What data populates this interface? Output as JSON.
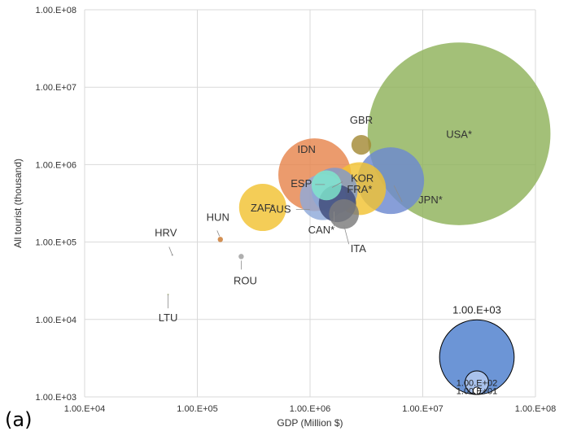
{
  "chart_data": {
    "type": "scatter",
    "subtype": "bubble",
    "xlabel": "GDP (Million $)",
    "ylabel": "All tourist  (thousand)",
    "x_scale": "log",
    "y_scale": "log",
    "xlim": [
      10000,
      100000000
    ],
    "ylim": [
      1000,
      100000000
    ],
    "x_ticks": [
      "1.00.E+04",
      "1.00.E+05",
      "1.00.E+06",
      "1.00.E+07",
      "1.00.E+08"
    ],
    "y_ticks": [
      "1.00.E+03",
      "1.00.E+04",
      "1.00.E+05",
      "1.00.E+06",
      "1.00.E+07",
      "1.00.E+08"
    ],
    "grid": true,
    "points": [
      {
        "label": "USA*",
        "x": 21000000,
        "y": 2500000,
        "size": 6000,
        "color": "#8fb25a"
      },
      {
        "label": "JPN*",
        "x": 5200000,
        "y": 620000,
        "size": 800,
        "color": "#6c89d0"
      },
      {
        "label": "GBR",
        "x": 2850000,
        "y": 1800000,
        "size": 70,
        "color": "#a48a36"
      },
      {
        "label": "FRA*",
        "x": 2750000,
        "y": 490000,
        "size": 500,
        "color": "#f1c232"
      },
      {
        "label": "IDN",
        "x": 1100000,
        "y": 740000,
        "size": 950,
        "color": "#e6854d"
      },
      {
        "label": "KOR",
        "x": 1650000,
        "y": 460000,
        "size": 380,
        "color": "#7f99cc"
      },
      {
        "label": "ESP",
        "x": 1400000,
        "y": 540000,
        "size": 160,
        "color": "#7fe8cc"
      },
      {
        "label": "AUS",
        "x": 1300000,
        "y": 380000,
        "size": 380,
        "color": "#8fa9d9"
      },
      {
        "label": "CAN*",
        "x": 1750000,
        "y": 315000,
        "size": 250,
        "color": "#3e4a79"
      },
      {
        "label": "ITA",
        "x": 2000000,
        "y": 230000,
        "size": 160,
        "color": "#7b7b7b"
      },
      {
        "label": "ZAF*",
        "x": 380000,
        "y": 280000,
        "size": 400,
        "color": "#f1c232"
      },
      {
        "label": "HUN",
        "x": 160000,
        "y": 108000,
        "size": 5,
        "color": "#c9782e"
      },
      {
        "label": "ROU",
        "x": 245000,
        "y": 65000,
        "size": 5,
        "color": "#9e9e9e"
      },
      {
        "label": "HRV",
        "x": 60000,
        "y": 68000,
        "size": 0.3,
        "color": "#888888"
      },
      {
        "label": "LTU",
        "x": 55000,
        "y": 21000,
        "size": 0.3,
        "color": "#a6b07a"
      }
    ],
    "size_legend": {
      "entries": [
        {
          "label": "1.00.E+03",
          "value": 1000,
          "color": "#6c95d6"
        },
        {
          "label": "1.00.E+02",
          "value": 100,
          "color": "#a9c2ec"
        },
        {
          "label": "1.00.E+01",
          "value": 10,
          "color": "#ffffff"
        }
      ]
    }
  },
  "panel_label": "(a)"
}
